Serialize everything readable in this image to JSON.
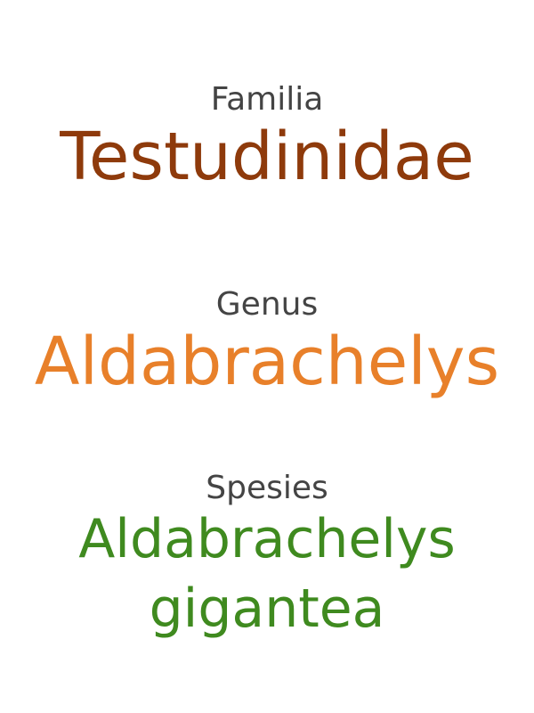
{
  "familia": {
    "label": "Familia",
    "name": "Testudinidae",
    "color": "#8e3a0b"
  },
  "genus": {
    "label": "Genus",
    "name": "Aldabrachelys",
    "color": "#e8802a"
  },
  "species": {
    "label": "Spesies",
    "name_line1": "Aldabrachelys",
    "name_line2": "gigantea",
    "color": "#3f8a1f"
  },
  "label_color": "#444444"
}
